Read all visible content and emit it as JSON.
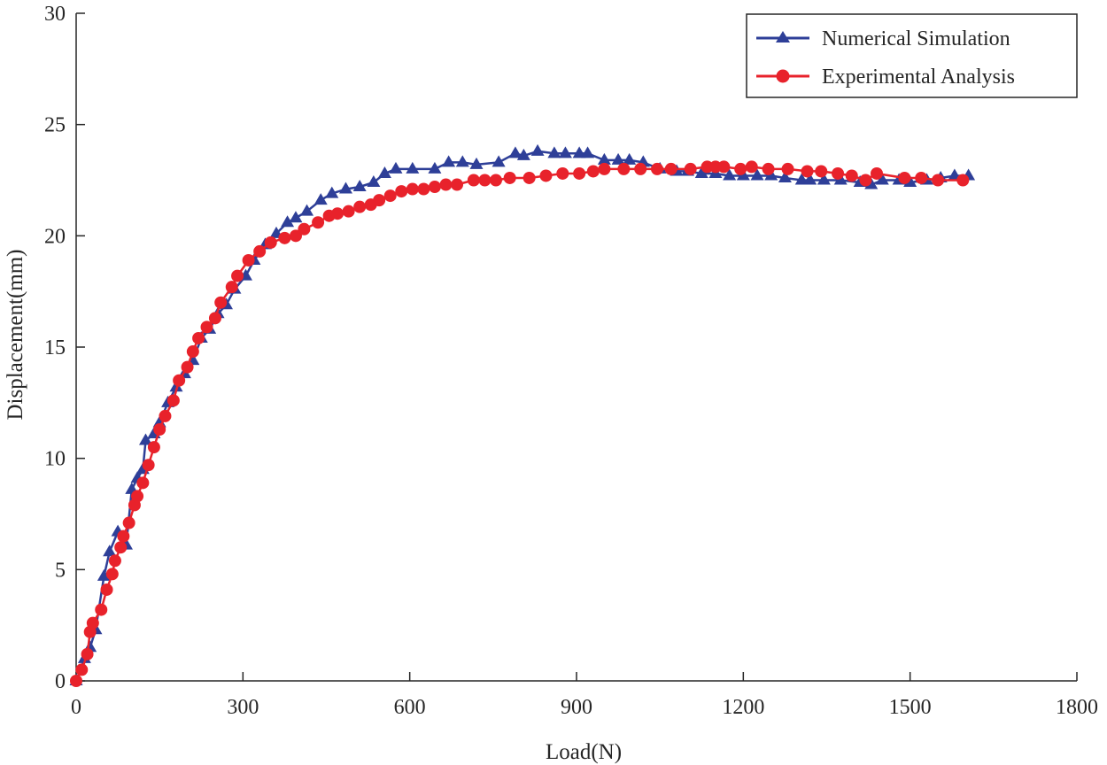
{
  "chart_data": {
    "type": "line",
    "title": "",
    "xlabel": "Load(N)",
    "ylabel": "Displacement(mm)",
    "xlim": [
      0,
      1800
    ],
    "ylim": [
      0,
      30
    ],
    "xticks": [
      0,
      300,
      600,
      900,
      1200,
      1500,
      1800
    ],
    "yticks": [
      0,
      5,
      10,
      15,
      20,
      25,
      30
    ],
    "xtick_labels": [
      "0",
      "300",
      "600",
      "900",
      "1200",
      "1500",
      "1800"
    ],
    "ytick_labels": [
      "0",
      "5",
      "10",
      "15",
      "20",
      "25",
      "30"
    ],
    "grid": false,
    "legend_position": "top-right",
    "series": [
      {
        "name": "Numerical Simulation",
        "color": "#2e3f98",
        "marker": "triangle",
        "x": [
          0,
          15,
          25,
          35,
          50,
          60,
          75,
          90,
          100,
          110,
          120,
          125,
          140,
          150,
          165,
          180,
          195,
          210,
          225,
          240,
          255,
          270,
          285,
          305,
          320,
          340,
          360,
          380,
          395,
          415,
          440,
          460,
          485,
          510,
          535,
          555,
          575,
          605,
          645,
          670,
          695,
          720,
          760,
          790,
          805,
          830,
          860,
          880,
          905,
          920,
          950,
          975,
          995,
          1020,
          1050,
          1080,
          1100,
          1125,
          1150,
          1175,
          1200,
          1225,
          1250,
          1275,
          1305,
          1320,
          1345,
          1375,
          1410,
          1430,
          1450,
          1480,
          1500,
          1530,
          1555,
          1580,
          1605
        ],
        "values": [
          0,
          1.0,
          1.5,
          2.3,
          4.7,
          5.8,
          6.7,
          6.1,
          8.6,
          9.1,
          9.5,
          10.8,
          11.1,
          11.6,
          12.5,
          13.2,
          13.8,
          14.4,
          15.4,
          15.8,
          16.5,
          16.9,
          17.6,
          18.2,
          18.9,
          19.6,
          20.1,
          20.6,
          20.8,
          21.1,
          21.6,
          21.9,
          22.1,
          22.2,
          22.4,
          22.8,
          23.0,
          23.0,
          23.0,
          23.3,
          23.3,
          23.2,
          23.3,
          23.7,
          23.6,
          23.8,
          23.7,
          23.7,
          23.7,
          23.7,
          23.4,
          23.4,
          23.4,
          23.3,
          23.0,
          22.9,
          22.9,
          22.8,
          22.8,
          22.7,
          22.7,
          22.7,
          22.7,
          22.6,
          22.5,
          22.5,
          22.5,
          22.5,
          22.4,
          22.3,
          22.5,
          22.5,
          22.4,
          22.5,
          22.6,
          22.7,
          22.7
        ]
      },
      {
        "name": "Experimental Analysis",
        "color": "#e8222b",
        "marker": "circle",
        "x": [
          0,
          10,
          20,
          25,
          30,
          45,
          55,
          65,
          70,
          80,
          85,
          95,
          105,
          110,
          120,
          130,
          140,
          150,
          160,
          175,
          185,
          200,
          210,
          220,
          235,
          250,
          260,
          280,
          290,
          310,
          330,
          350,
          375,
          395,
          410,
          435,
          455,
          470,
          490,
          510,
          530,
          545,
          565,
          585,
          605,
          625,
          645,
          665,
          685,
          715,
          735,
          755,
          780,
          815,
          845,
          875,
          905,
          930,
          950,
          985,
          1015,
          1045,
          1070,
          1105,
          1135,
          1150,
          1165,
          1195,
          1215,
          1245,
          1280,
          1315,
          1340,
          1370,
          1395,
          1420,
          1440,
          1490,
          1520,
          1550,
          1595
        ],
        "values": [
          0,
          0.5,
          1.2,
          2.2,
          2.6,
          3.2,
          4.1,
          4.8,
          5.4,
          6.0,
          6.5,
          7.1,
          7.9,
          8.3,
          8.9,
          9.7,
          10.5,
          11.3,
          11.9,
          12.6,
          13.5,
          14.1,
          14.8,
          15.4,
          15.9,
          16.3,
          17.0,
          17.7,
          18.2,
          18.9,
          19.3,
          19.7,
          19.9,
          20.0,
          20.3,
          20.6,
          20.9,
          21.0,
          21.1,
          21.3,
          21.4,
          21.6,
          21.8,
          22.0,
          22.1,
          22.1,
          22.2,
          22.3,
          22.3,
          22.5,
          22.5,
          22.5,
          22.6,
          22.6,
          22.7,
          22.8,
          22.8,
          22.9,
          23.0,
          23.0,
          23.0,
          23.0,
          23.0,
          23.0,
          23.1,
          23.1,
          23.1,
          23.0,
          23.1,
          23.0,
          23.0,
          22.9,
          22.9,
          22.8,
          22.7,
          22.5,
          22.8,
          22.6,
          22.6,
          22.5,
          22.5
        ]
      }
    ]
  }
}
